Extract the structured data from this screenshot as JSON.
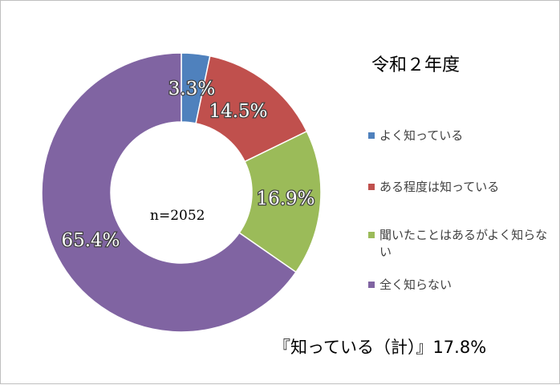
{
  "chart_data": {
    "type": "pie",
    "title": "令和２年度",
    "sample_size": "n=2052",
    "summary": "『知っている（計）』17.8%",
    "legend_position": "right",
    "slices": [
      {
        "label": "よく知っている",
        "value": 3.3,
        "value_label": "3.3%",
        "color": "#4f81bd"
      },
      {
        "label": "ある程度は知っている",
        "value": 14.5,
        "value_label": "14.5%",
        "color": "#c0504d"
      },
      {
        "label": "聞いたことはあるがよく知らない",
        "value": 16.9,
        "value_label": "16.9%",
        "color": "#9bbb59"
      },
      {
        "label": "全く知らない",
        "value": 65.4,
        "value_label": "65.4%",
        "color": "#8064a2"
      }
    ]
  }
}
